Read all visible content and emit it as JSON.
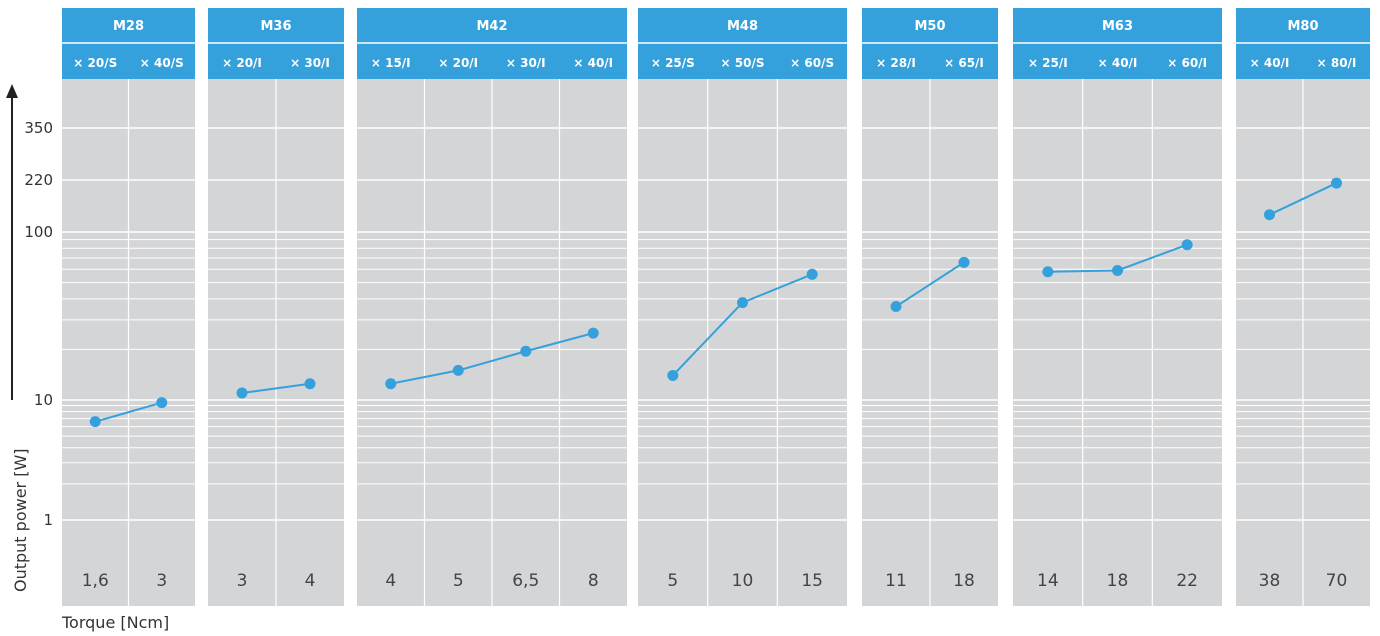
{
  "chart_data": {
    "type": "line",
    "ylabel": "Output power  [W]",
    "xlabel": "Torque [Ncm]",
    "yscale": "log",
    "yticks": [
      "1",
      "10",
      "100",
      "220",
      "350"
    ],
    "colors": {
      "accent": "#35a1dc",
      "panel_bg": "#d4d5d7",
      "gridline": "#ffffff"
    },
    "groups": [
      {
        "model": "M28",
        "ratios": [
          "× 20/S",
          "× 40/S"
        ],
        "x": [
          "1,6",
          "3"
        ],
        "y": [
          6.6,
          9.5
        ]
      },
      {
        "model": "M36",
        "ratios": [
          "× 20/I",
          "× 30/I"
        ],
        "x": [
          "3",
          "4"
        ],
        "y": [
          11,
          12.5
        ]
      },
      {
        "model": "M42",
        "ratios": [
          "× 15/I",
          "× 20/I",
          "× 30/I",
          "× 40/I"
        ],
        "x": [
          "4",
          "5",
          "6,5",
          "8"
        ],
        "y": [
          12.5,
          15,
          19.5,
          25
        ]
      },
      {
        "model": "M48",
        "ratios": [
          "× 25/S",
          "× 50/S",
          "× 60/S"
        ],
        "x": [
          "5",
          "10",
          "15"
        ],
        "y": [
          14,
          38,
          56
        ]
      },
      {
        "model": "M50",
        "ratios": [
          "× 28/I",
          "× 65/I"
        ],
        "x": [
          "11",
          "18"
        ],
        "y": [
          36,
          66
        ]
      },
      {
        "model": "M63",
        "ratios": [
          "× 25/I",
          "× 40/I",
          "× 60/I"
        ],
        "x": [
          "14",
          "18",
          "22"
        ],
        "y": [
          58,
          59,
          84
        ]
      },
      {
        "model": "M80",
        "ratios": [
          "× 40/I",
          "× 80/I"
        ],
        "x": [
          "38",
          "70"
        ],
        "y": [
          130,
          210
        ]
      }
    ]
  }
}
